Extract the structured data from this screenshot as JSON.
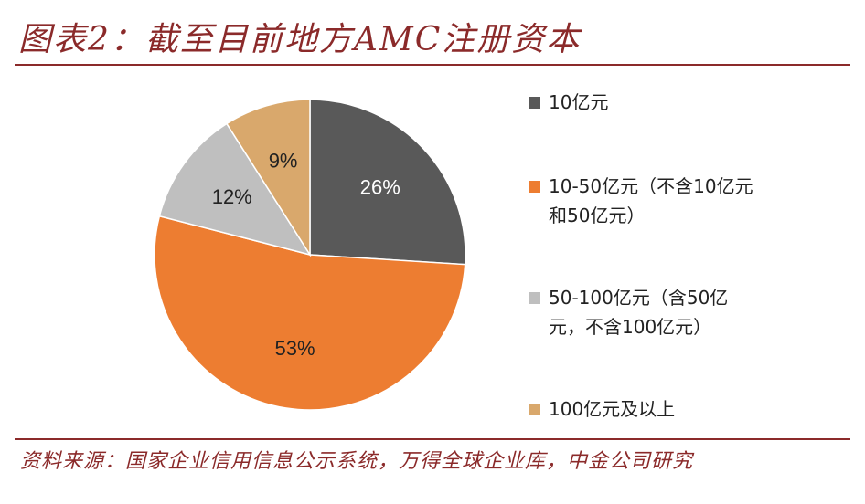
{
  "title": "图表2：截至目前地方AMC注册资本",
  "source": "资料来源：国家企业信用信息公示系统，万得全球企业库，中金公司研究",
  "chart_data": {
    "type": "pie",
    "categories": [
      "10亿元",
      "10-50亿元（不含10亿元和50亿元）",
      "50-100亿元（含50亿元，不含100亿元）",
      "100亿元及以上"
    ],
    "values": [
      26,
      53,
      12,
      9
    ],
    "value_labels": [
      "26%",
      "53%",
      "12%",
      "9%"
    ],
    "colors": [
      "#595959",
      "#ed7d31",
      "#bfbfbf",
      "#d9a86c"
    ],
    "label_colors": [
      "#ffffff",
      "#222222",
      "#222222",
      "#222222"
    ],
    "start_angle": "12 o'clock",
    "direction": "clockwise",
    "legend_position": "right"
  }
}
